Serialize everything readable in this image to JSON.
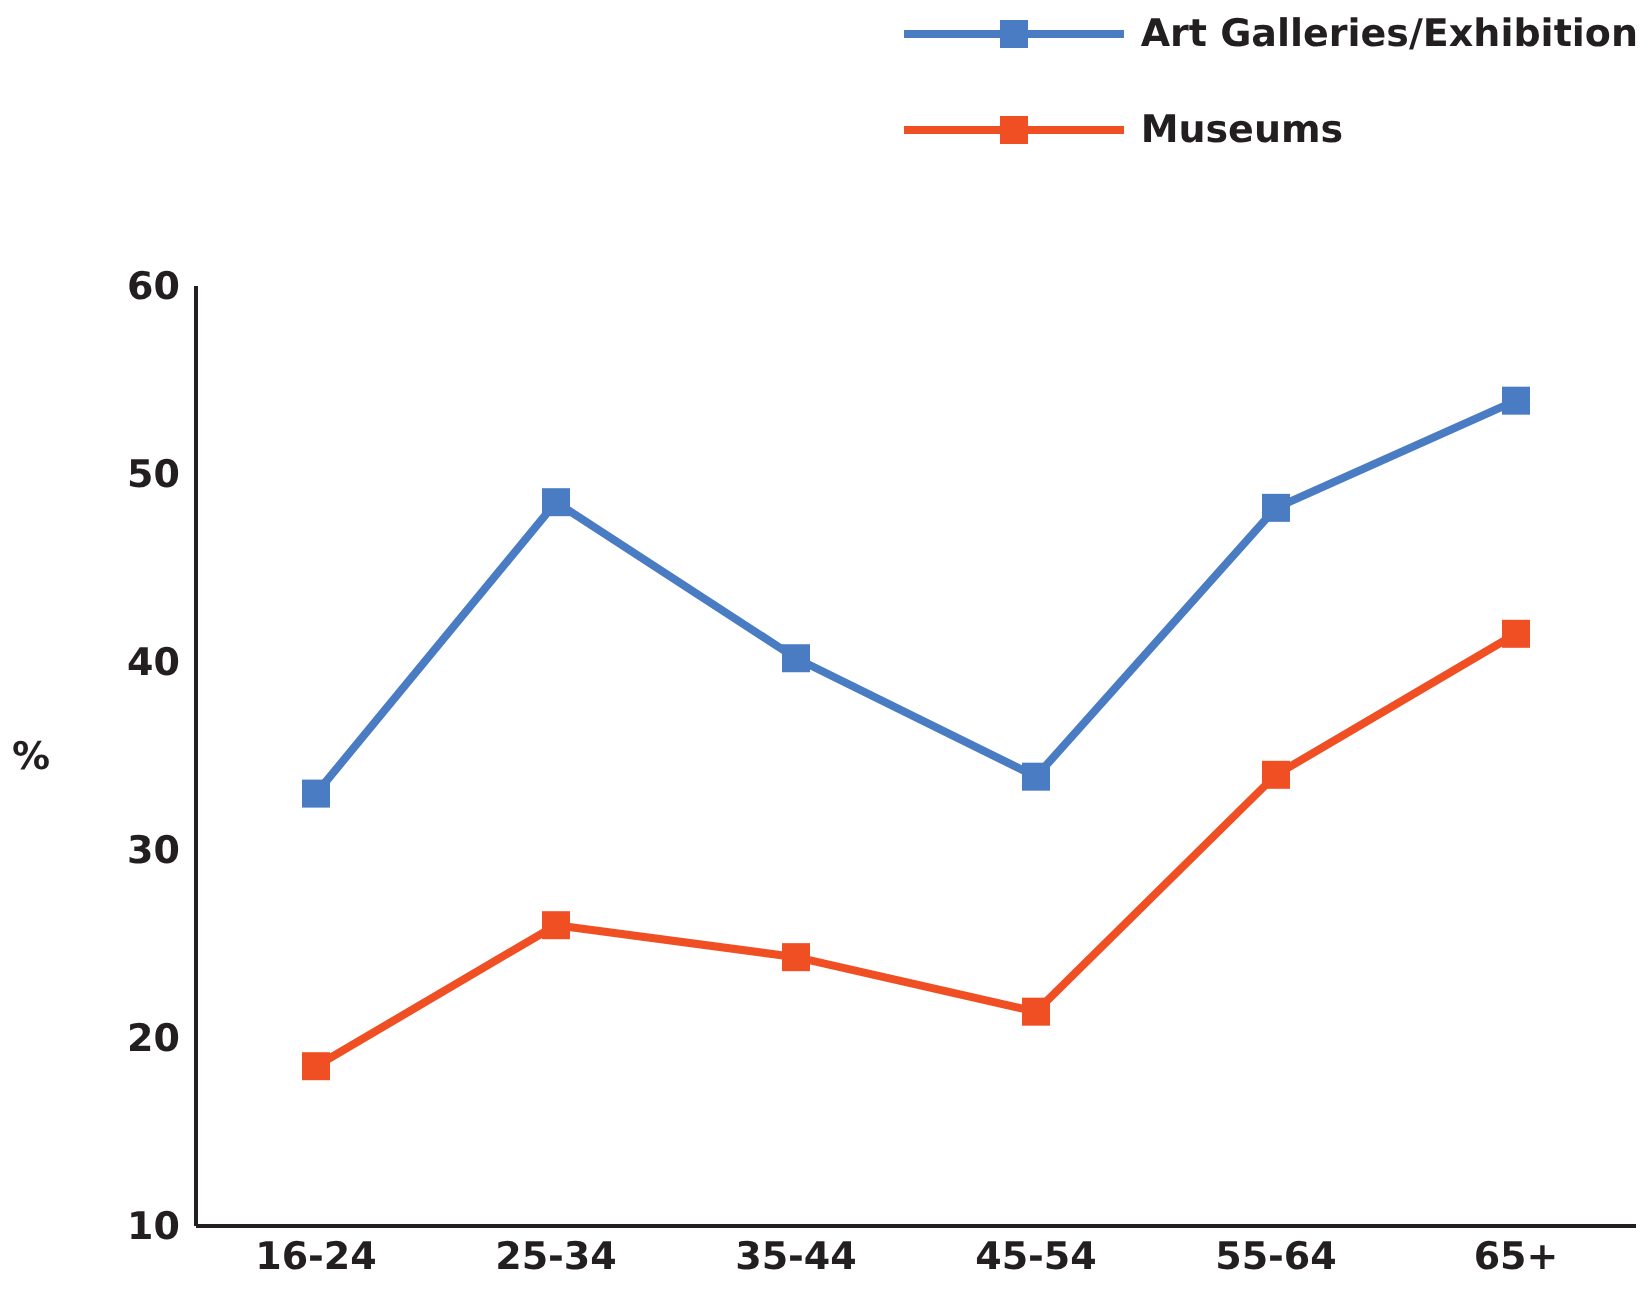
{
  "chart_data": {
    "type": "line",
    "ylabel": "%",
    "categories": [
      "16-24",
      "25-34",
      "35-44",
      "45-54",
      "55-64",
      "65+"
    ],
    "series": [
      {
        "name": "Art Galleries/Exhibition",
        "color": "#4a7cc4",
        "values": [
          33,
          48.5,
          40.2,
          33.9,
          48.2,
          53.9
        ]
      },
      {
        "name": "Museums",
        "color": "#f04e23",
        "values": [
          18.5,
          26,
          24.3,
          21.4,
          34,
          41.5
        ]
      }
    ],
    "ylim": [
      10,
      60
    ],
    "yticks": [
      10,
      20,
      30,
      40,
      50,
      60
    ],
    "grid": false,
    "legend": "top right",
    "marker": "square",
    "line_style": "solid"
  }
}
